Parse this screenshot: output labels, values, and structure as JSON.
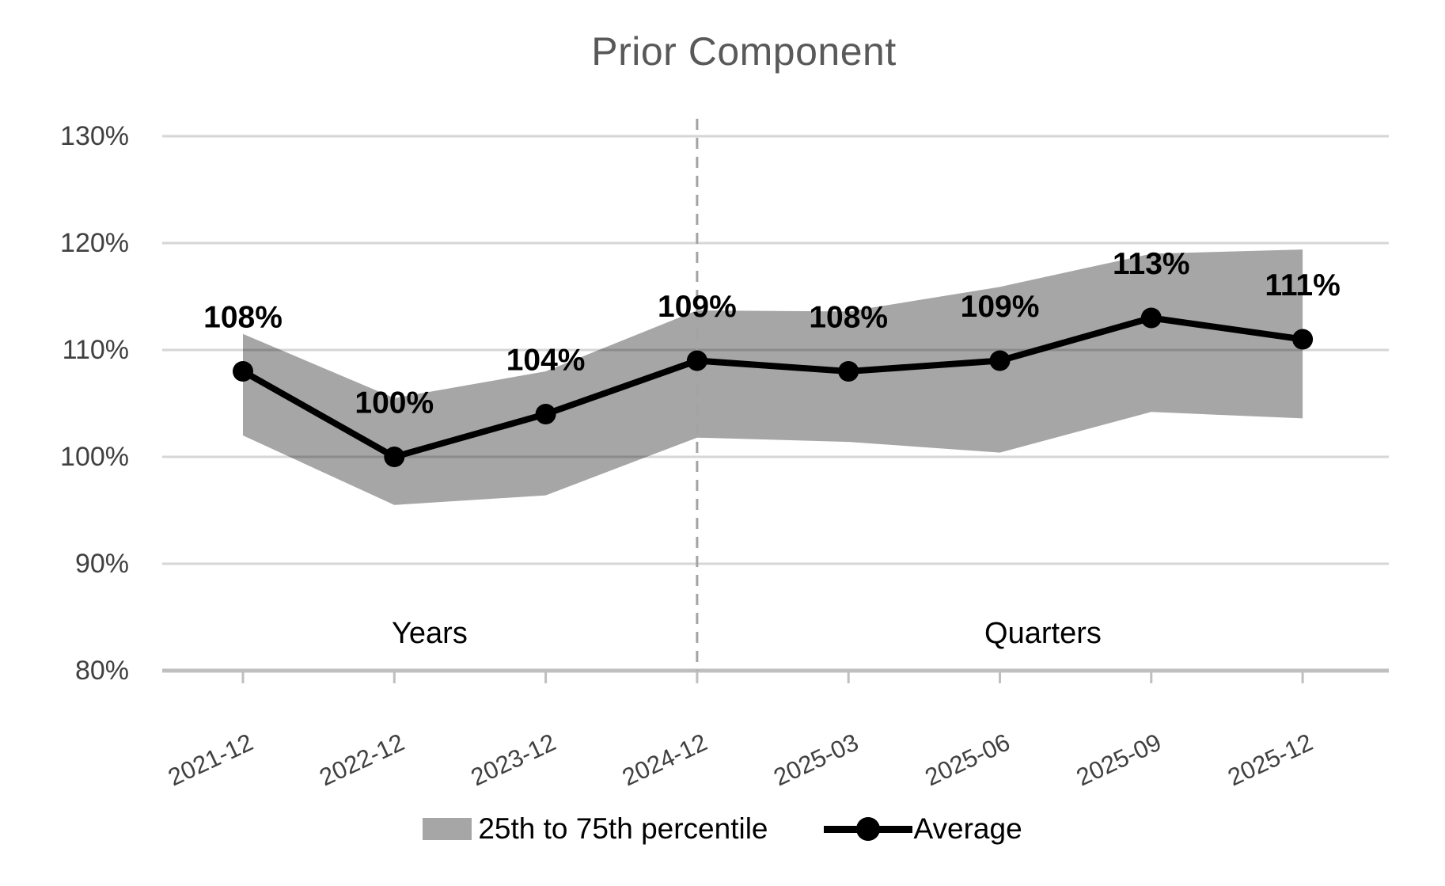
{
  "chart_data": {
    "type": "line",
    "title": "Prior Component",
    "categories": [
      "2021-12",
      "2022-12",
      "2023-12",
      "2024-12",
      "2025-03",
      "2025-06",
      "2025-09",
      "2025-12"
    ],
    "series": [
      {
        "name": "25th to 75th percentile",
        "type": "area-band",
        "color": "#a6a6a6",
        "upper": [
          111.5,
          105.5,
          108.0,
          113.7,
          113.6,
          115.9,
          119.0,
          119.4
        ],
        "lower": [
          102.0,
          95.5,
          96.4,
          101.8,
          101.4,
          100.4,
          104.2,
          103.6
        ]
      },
      {
        "name": "Average",
        "type": "line",
        "color": "#000000",
        "values": [
          108,
          100,
          104,
          109,
          108,
          109,
          113,
          111
        ],
        "data_labels": [
          "108%",
          "100%",
          "104%",
          "109%",
          "108%",
          "109%",
          "113%",
          "111%"
        ]
      }
    ],
    "y_axis": {
      "min": 80,
      "max": 130,
      "step": 10,
      "tick_labels": [
        "130%",
        "120%",
        "110%",
        "100%",
        "90%",
        "80%"
      ]
    },
    "x_axis": {
      "tick_labels": [
        "2021-12",
        "2022-12",
        "2023-12",
        "2024-12",
        "2025-03",
        "2025-06",
        "2025-09",
        "2025-12"
      ],
      "rotation_deg": -25,
      "section_divider_after": "2024-12",
      "section_labels": [
        "Years",
        "Quarters"
      ]
    },
    "grid": true,
    "legend_position": "bottom",
    "colors": {
      "title_text": "#595959",
      "axis_text": "#404040",
      "gridline": "#d9d9d9",
      "gridline_over_band": "rgba(0,0,0,0.16)",
      "axis_line": "#bfbfbf",
      "divider": "#a3a3a3",
      "data_label": "#000000",
      "section_label": "#000000"
    }
  }
}
